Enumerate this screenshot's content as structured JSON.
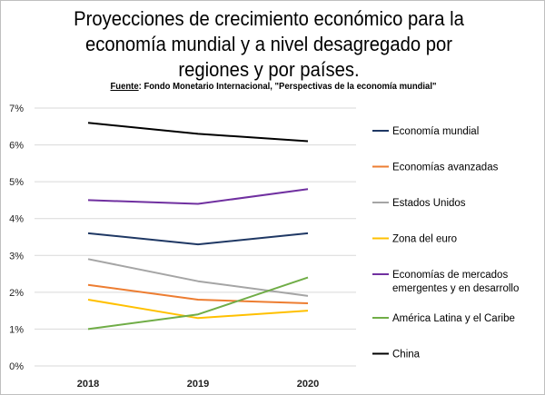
{
  "chart": {
    "title_lines": [
      "Proyecciones de crecimiento económico para la",
      "economía mundial y a nivel desagregado por",
      "regiones y por países."
    ],
    "source_label": "Fuente",
    "source_text": ": Fondo Monetario Internacional, \"Perspectivas de la economía mundial\""
  },
  "chart_data": {
    "type": "line",
    "x": [
      "2018",
      "2019",
      "2020"
    ],
    "ylim": [
      0,
      7
    ],
    "yticks": [
      "0%",
      "1%",
      "2%",
      "3%",
      "4%",
      "5%",
      "6%",
      "7%"
    ],
    "grid": true,
    "legend_position": "right",
    "series": [
      {
        "name": "Economía mundial",
        "name_lines": [
          "Economía mundial"
        ],
        "color": "#1f3864",
        "values": [
          3.6,
          3.3,
          3.6
        ]
      },
      {
        "name": "Economías avanzadas",
        "name_lines": [
          "Economías avanzadas"
        ],
        "color": "#ed7d31",
        "values": [
          2.2,
          1.8,
          1.7
        ]
      },
      {
        "name": "Estados Unidos",
        "name_lines": [
          "Estados Unidos"
        ],
        "color": "#a5a5a5",
        "values": [
          2.9,
          2.3,
          1.9
        ]
      },
      {
        "name": "Zona del euro",
        "name_lines": [
          "Zona del euro"
        ],
        "color": "#ffc000",
        "values": [
          1.8,
          1.3,
          1.5
        ]
      },
      {
        "name": "Economías de mercados emergentes y en desarrollo",
        "name_lines": [
          "Economías de mercados",
          "emergentes y en desarrollo"
        ],
        "color": "#7030a0",
        "values": [
          4.5,
          4.4,
          4.8
        ]
      },
      {
        "name": "América Latina y el Caribe",
        "name_lines": [
          "América Latina y el Caribe"
        ],
        "color": "#70ad47",
        "values": [
          1.0,
          1.4,
          2.4
        ]
      },
      {
        "name": "China",
        "name_lines": [
          "China"
        ],
        "color": "#000000",
        "values": [
          6.6,
          6.3,
          6.1
        ]
      }
    ]
  }
}
